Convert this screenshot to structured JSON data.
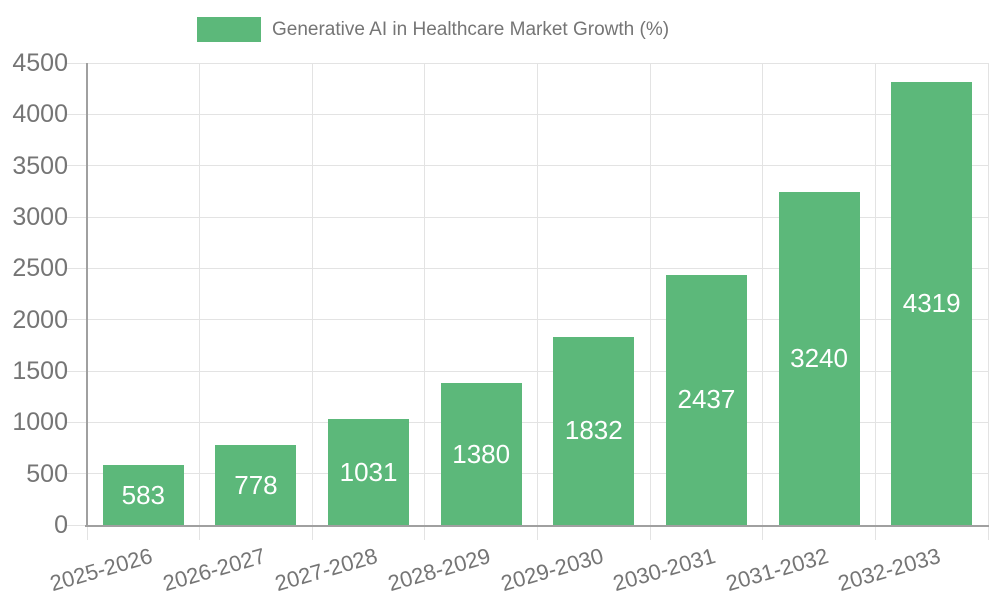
{
  "legend": {
    "label": "Generative AI in Healthcare Market Growth (%)"
  },
  "chart_data": {
    "type": "bar",
    "title": "Generative AI in Healthcare Market Growth (%)",
    "categories": [
      "2025-2026",
      "2026-2027",
      "2027-2028",
      "2028-2029",
      "2029-2030",
      "2030-2031",
      "2031-2032",
      "2032-2033"
    ],
    "values": [
      583,
      778,
      1031,
      1380,
      1832,
      2437,
      3240,
      4319
    ],
    "xlabel": "",
    "ylabel": "",
    "ylim": [
      0,
      4500
    ],
    "y_ticks": [
      0,
      500,
      1000,
      1500,
      2000,
      2500,
      3000,
      3500,
      4000,
      4500
    ],
    "grid": true,
    "legend_position": "top",
    "value_labels": "inside-center",
    "x_label_rotation_deg": -16
  },
  "colors": {
    "bar_green": "#5cb87a",
    "axis_line": "#a0a0a0",
    "grid_line": "#e3e3e3",
    "tick_text": "#757575",
    "value_label_text": "#ffffff",
    "background": "#ffffff"
  }
}
